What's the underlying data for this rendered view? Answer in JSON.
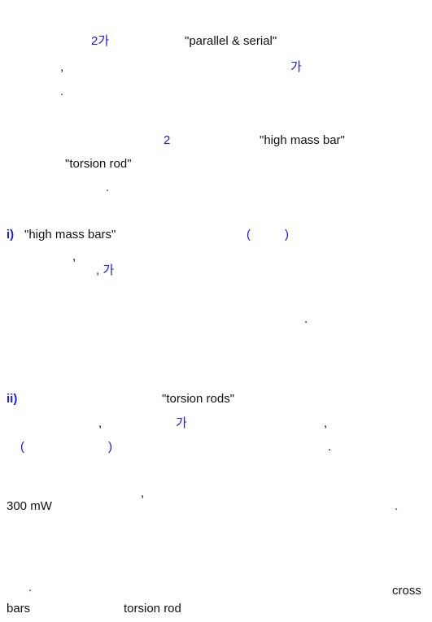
{
  "p1": {
    "l1a": "2가",
    "l1b": "\"parallel & serial\"",
    "l2a": ",",
    "l2b": "가",
    "l3a": "."
  },
  "p2": {
    "l1a": "2",
    "l1b": "\"high mass bar\"",
    "l2a": "\"torsion rod\"",
    "l3a": "."
  },
  "p3": {
    "marker": "i)",
    "l1a": "\"high mass bars\"",
    "l1b": "(",
    "l1c": ")",
    "l2a": ",",
    "l3a": ", 가",
    "l4a": "."
  },
  "p4": {
    "marker": "ii)",
    "l1a": "\"torsion rods\"",
    "l2a": ",",
    "l2b": "가",
    "l2c": ",",
    "l3a": "(",
    "l3b": ")",
    "l3c": "."
  },
  "p5": {
    "l1a": ",",
    "l2a": "300 mW",
    "l2b": "."
  },
  "p6": {
    "l1a": ".",
    "l1b": "cross",
    "l2a": "bars",
    "l2b": "torsion rod"
  }
}
